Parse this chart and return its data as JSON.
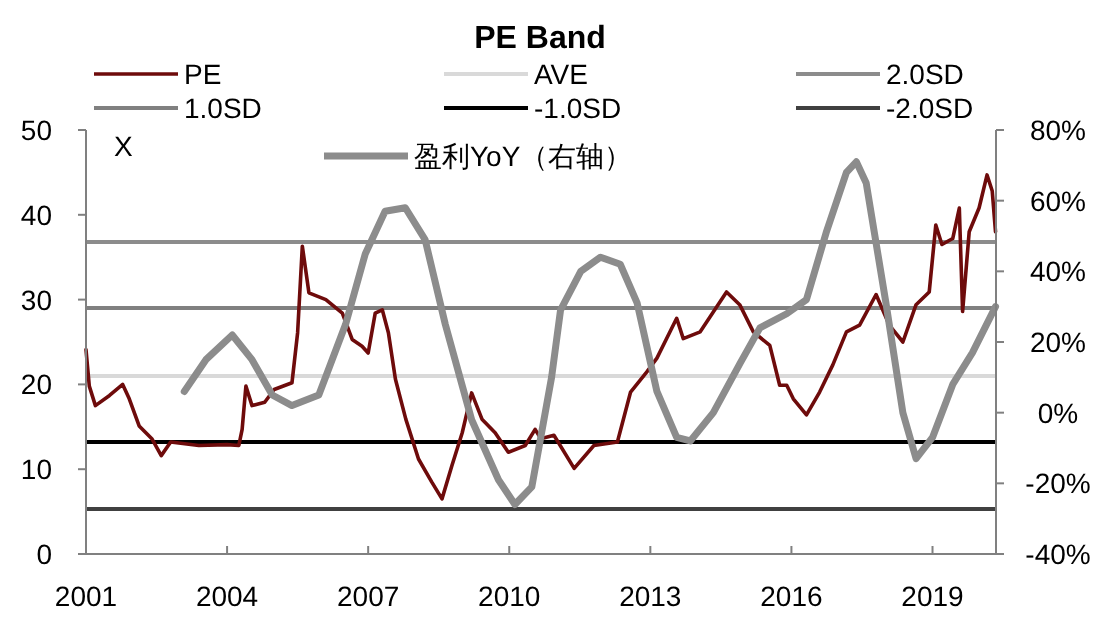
{
  "chart_data": {
    "type": "line",
    "title": "PE Band",
    "ylabel": "X",
    "series": [
      {
        "name": "PE",
        "color": "#6e0b0b",
        "x": [
          2001.0,
          2001.07,
          2001.2,
          2001.5,
          2001.78,
          2001.92,
          2002.13,
          2002.4,
          2002.6,
          2002.8,
          2003.4,
          2004.0,
          2004.25,
          2004.32,
          2004.4,
          2004.53,
          2004.8,
          2005.0,
          2005.38,
          2005.5,
          2005.6,
          2005.74,
          2006.1,
          2006.45,
          2006.66,
          2006.87,
          2007.0,
          2007.15,
          2007.3,
          2007.43,
          2007.58,
          2007.8,
          2008.07,
          2008.35,
          2008.57,
          2008.78,
          2009.0,
          2009.2,
          2009.42,
          2009.7,
          2009.98,
          2010.34,
          2010.55,
          2010.67,
          2010.95,
          2011.38,
          2011.8,
          2012.3,
          2012.58,
          2012.93,
          2013.14,
          2013.56,
          2013.7,
          2014.06,
          2014.62,
          2014.9,
          2015.19,
          2015.54,
          2015.75,
          2015.9,
          2016.04,
          2016.32,
          2016.6,
          2016.88,
          2017.17,
          2017.45,
          2017.8,
          2018.08,
          2018.37,
          2018.65,
          2018.93,
          2019.07,
          2019.2,
          2019.43,
          2019.57,
          2019.64,
          2019.78,
          2019.99,
          2020.16,
          2020.27,
          2020.34
        ],
        "values": [
          24.1,
          19.8,
          17.5,
          18.7,
          20.0,
          18.3,
          15.1,
          13.6,
          11.6,
          13.2,
          12.8,
          12.9,
          12.8,
          14.7,
          19.8,
          17.5,
          17.9,
          19.4,
          20.2,
          26.1,
          36.3,
          30.8,
          30.0,
          28.4,
          25.3,
          24.5,
          23.7,
          28.4,
          28.8,
          26.1,
          20.6,
          15.9,
          11.2,
          8.5,
          6.5,
          10.4,
          14.3,
          19.0,
          15.9,
          14.3,
          12.0,
          12.8,
          14.7,
          13.6,
          14.0,
          10.1,
          12.8,
          13.2,
          19.1,
          21.5,
          23.1,
          27.8,
          25.4,
          26.2,
          30.9,
          29.4,
          26.2,
          24.6,
          19.9,
          19.9,
          18.3,
          16.4,
          19.1,
          22.3,
          26.2,
          27.0,
          30.6,
          27.0,
          25.0,
          29.4,
          30.9,
          38.8,
          36.5,
          37.2,
          40.8,
          28.6,
          38.0,
          40.8,
          44.7,
          42.8,
          38.0
        ]
      },
      {
        "name": "盈利YoY（右轴）",
        "color": "#8c8c8c",
        "axis": "y2",
        "x": [
          2003.09,
          2003.55,
          2004.11,
          2004.53,
          2004.96,
          2005.38,
          2005.95,
          2006.52,
          2006.94,
          2007.36,
          2007.79,
          2008.21,
          2008.64,
          2009.2,
          2009.77,
          2010.12,
          2010.48,
          2010.9,
          2011.09,
          2011.52,
          2011.94,
          2012.36,
          2012.72,
          2013.14,
          2013.56,
          2013.85,
          2014.34,
          2014.91,
          2015.33,
          2015.9,
          2016.32,
          2016.74,
          2017.17,
          2017.38,
          2017.59,
          2018.01,
          2018.37,
          2018.65,
          2019.0,
          2019.43,
          2019.85,
          2020.34
        ],
        "values": [
          6,
          15,
          22,
          15,
          5,
          2,
          5,
          25,
          45,
          57,
          58,
          49,
          25,
          -2,
          -19,
          -26,
          -21,
          10,
          29,
          40,
          44,
          42,
          31,
          6,
          -7,
          -8,
          0,
          14,
          24,
          28,
          32,
          51,
          68,
          71,
          65,
          31,
          0,
          -13,
          -7,
          8,
          17,
          30
        ]
      }
    ],
    "ref_lines": [
      {
        "axis": "y",
        "value": 21.0,
        "label": "AVE",
        "color": "#d9d9d9"
      },
      {
        "axis": "y",
        "value": 36.8,
        "label": "2.0SD",
        "color": "#8c8c8c"
      },
      {
        "axis": "y",
        "value": 29.0,
        "label": "1.0SD",
        "color": "#808080"
      },
      {
        "axis": "y",
        "value": 13.2,
        "label": "-1.0SD",
        "color": "#000000"
      },
      {
        "axis": "y",
        "value": 5.3,
        "label": "-2.0SD",
        "color": "#404040"
      }
    ],
    "xlim": [
      2001,
      2020.35
    ],
    "xticks": [
      2001,
      2004,
      2007,
      2010,
      2013,
      2016,
      2019
    ],
    "ylim": [
      0,
      50
    ],
    "yticks": [
      0,
      10,
      20,
      30,
      40,
      50
    ],
    "y2lim": [
      -40,
      80
    ],
    "y2ticks": [
      {
        "value": -40,
        "label": "-40%"
      },
      {
        "value": -20,
        "label": "-20%"
      },
      {
        "value": 0,
        "label": "0%"
      },
      {
        "value": 20,
        "label": "20%"
      },
      {
        "value": 40,
        "label": "40%"
      },
      {
        "value": 60,
        "label": "60%"
      },
      {
        "value": 80,
        "label": "80%"
      }
    ],
    "legend": "top",
    "grid": false
  }
}
